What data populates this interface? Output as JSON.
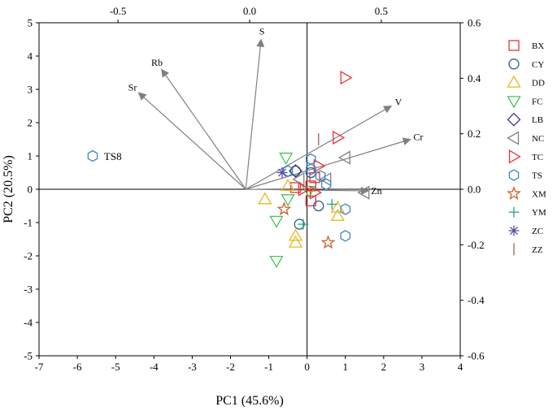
{
  "chart_data": {
    "type": "scatter",
    "subtype": "PCA biplot",
    "xlabel": "PC1 (45.6%)",
    "ylabel": "PC2 (20.5%)",
    "xlim": [
      -7,
      4
    ],
    "ylim": [
      -5,
      5
    ],
    "x_ticks": [
      -7,
      -6,
      -5,
      -4,
      -3,
      -2,
      -1,
      0,
      1,
      2,
      3,
      4
    ],
    "y_ticks": [
      -5,
      -4,
      -3,
      -2,
      -1,
      0,
      1,
      2,
      3,
      4,
      5
    ],
    "top_axis": {
      "lim": [
        -0.8,
        0.8
      ],
      "ticks": [
        -0.5,
        0.0,
        0.5
      ],
      "tick_labels": [
        "-0.5",
        "0.0",
        "0.5"
      ]
    },
    "right_axis": {
      "lim": [
        -0.6,
        0.6
      ],
      "ticks": [
        0.6,
        0.4,
        0.2,
        0.0,
        -0.2,
        -0.4,
        -0.6
      ],
      "tick_labels": [
        "0.6",
        "0.4",
        "0.2",
        "0.0",
        "-0.2",
        "-0.4",
        "-0.6"
      ]
    },
    "zero_lines": true,
    "grid": false,
    "legend_position": "right",
    "loadings": {
      "origin": [
        -1.6,
        0
      ],
      "vectors": [
        {
          "name": "S",
          "x": -1.2,
          "y": 4.5
        },
        {
          "name": "Rb",
          "x": -3.8,
          "y": 3.6
        },
        {
          "name": "Sr",
          "x": -4.4,
          "y": 2.9
        },
        {
          "name": "V",
          "x": 2.2,
          "y": 2.5
        },
        {
          "name": "Cr",
          "x": 2.7,
          "y": 1.5
        },
        {
          "name": "Zn",
          "x": 1.6,
          "y": -0.05
        }
      ]
    },
    "series": [
      {
        "name": "BX",
        "marker": "square",
        "color": "#e8323a",
        "points": [
          [
            0.1,
            -0.35
          ],
          [
            0.1,
            0.1
          ],
          [
            -0.3,
            0.05
          ],
          [
            0.2,
            0.35
          ]
        ]
      },
      {
        "name": "CY",
        "marker": "circle",
        "color": "#2d5c8c",
        "points": [
          [
            -0.2,
            -1.05
          ],
          [
            0.3,
            -0.5
          ],
          [
            -0.3,
            0.55
          ],
          [
            0.1,
            0.5
          ]
        ]
      },
      {
        "name": "DD",
        "marker": "triangle-up",
        "color": "#e6b820",
        "points": [
          [
            -1.1,
            -0.3
          ],
          [
            -0.3,
            -1.4
          ],
          [
            -0.3,
            -1.6
          ],
          [
            0.8,
            -0.8
          ],
          [
            0.8,
            -0.55
          ],
          [
            -0.5,
            0.1
          ]
        ]
      },
      {
        "name": "FC",
        "marker": "triangle-down",
        "color": "#45c455",
        "points": [
          [
            -0.55,
            0.95
          ],
          [
            -0.8,
            -0.95
          ],
          [
            -0.8,
            -2.15
          ],
          [
            -0.5,
            -0.3
          ],
          [
            0.05,
            -0.05
          ]
        ]
      },
      {
        "name": "LB",
        "marker": "diamond",
        "color": "#3d3a8c",
        "points": [
          [
            -0.3,
            0.55
          ]
        ]
      },
      {
        "name": "NC",
        "marker": "triangle-left",
        "color": "#808080",
        "points": [
          [
            1.0,
            0.95
          ],
          [
            1.5,
            -0.1
          ],
          [
            0.5,
            0.3
          ],
          [
            -0.2,
            0.3
          ]
        ]
      },
      {
        "name": "TC",
        "marker": "triangle-right",
        "color": "#e8323a",
        "points": [
          [
            1.0,
            3.35
          ],
          [
            0.8,
            1.55
          ],
          [
            0.3,
            0.7
          ],
          [
            0.2,
            -0.1
          ],
          [
            -0.1,
            0.0
          ]
        ]
      },
      {
        "name": "TS",
        "marker": "hexagon",
        "color": "#3a86c8",
        "points": [
          [
            -5.6,
            1.0
          ],
          [
            1.0,
            -0.6
          ],
          [
            1.0,
            -1.4
          ],
          [
            0.5,
            0.15
          ],
          [
            0.1,
            0.9
          ],
          [
            -0.5,
            0.55
          ],
          [
            0.1,
            0.6
          ],
          [
            0.35,
            0.4
          ]
        ]
      },
      {
        "name": "XM",
        "marker": "star",
        "color": "#c8602a",
        "points": [
          [
            -0.6,
            -0.6
          ],
          [
            0.55,
            -1.6
          ]
        ]
      },
      {
        "name": "YM",
        "marker": "plus",
        "color": "#2aa08c",
        "points": [
          [
            -0.1,
            -1.05
          ],
          [
            0.65,
            -0.45
          ]
        ]
      },
      {
        "name": "ZC",
        "marker": "asterisk",
        "color": "#5a4aa8",
        "points": [
          [
            -0.65,
            0.5
          ]
        ]
      },
      {
        "name": "ZZ",
        "marker": "vline",
        "color": "#8c6a5a",
        "points": [
          [
            0.3,
            1.5
          ]
        ]
      }
    ],
    "annotations": [
      {
        "text": "TS8",
        "x": -5.6,
        "y": 1.0
      }
    ]
  }
}
